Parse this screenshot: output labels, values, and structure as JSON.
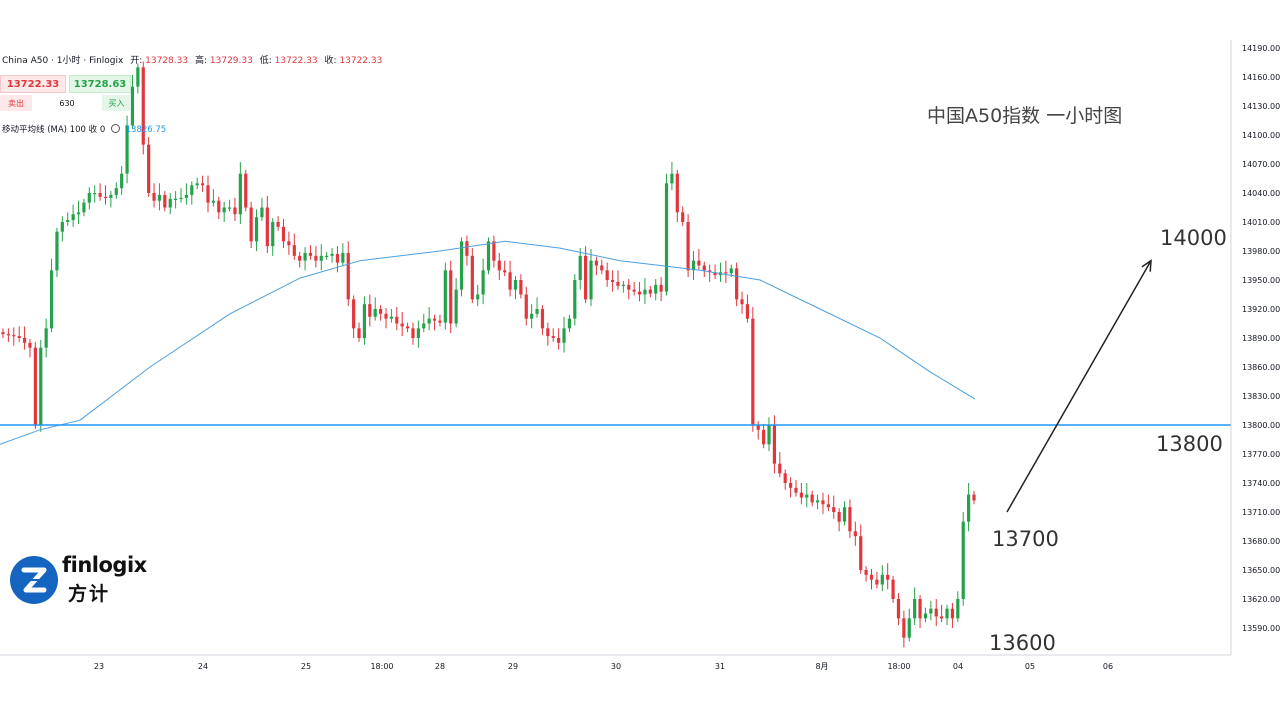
{
  "header": {
    "symbol": "China A50 · 1小时 · Finlogix",
    "open_label": "开:",
    "open_value": "13728.33",
    "high_label": "高:",
    "high_value": "13729.33",
    "low_label": "低:",
    "low_value": "13722.33",
    "close_label": "收:",
    "close_value": "13722.33"
  },
  "trade_panel": {
    "bid": "13722.33",
    "ask": "13728.63",
    "sell_label": "卖出",
    "buy_label": "买入",
    "spread": "630"
  },
  "ma_legend": {
    "label": "移动平均线 (MA) 100 收 0",
    "value": "13826.75"
  },
  "annotation": {
    "title": "中国A50指数 一小时图",
    "level_14000": "14000",
    "level_13800": "13800",
    "level_13700": "13700",
    "level_13600": "13600"
  },
  "logo": {
    "en": "finlogix",
    "cn": "方计"
  },
  "colors": {
    "up": "#26a14b",
    "down": "#e0363c",
    "ma": "#4a9fe0",
    "hline": "#2196f3",
    "arrow": "#222222"
  },
  "chart_data": {
    "type": "candlestick",
    "title": "中国A50指数 一小时图",
    "ylim": [
      13570,
      14200
    ],
    "y_ticks": [
      "14190.00",
      "14160.00",
      "14130.00",
      "14100.00",
      "14070.00",
      "14040.00",
      "14010.00",
      "13980.00",
      "13950.00",
      "13920.00",
      "13890.00",
      "13860.00",
      "13830.00",
      "13800.00",
      "13770.00",
      "13740.00",
      "13710.00",
      "13680.00",
      "13650.00",
      "13620.00",
      "13590.00"
    ],
    "x_ticks": [
      "23",
      "24",
      "25",
      "18:00",
      "28",
      "29",
      "30",
      "31",
      "8月",
      "18:00",
      "04",
      "05",
      "06"
    ],
    "horizontal_line": 13800,
    "ma_series_name": "移动平均线 (MA) 100",
    "ma_last_value": 13826.75,
    "arrow": {
      "from": {
        "x": "04",
        "y": 13710
      },
      "to": {
        "x": "06",
        "y": 13970
      }
    },
    "series": [
      {
        "name": "23",
        "values": [
          13894,
          13893,
          13892,
          13890,
          13885,
          13880,
          13800,
          13880,
          13900,
          13960,
          14000,
          14010,
          14012,
          14018,
          14020,
          14030,
          14040,
          14040,
          14036,
          14035,
          14038,
          14045,
          14060,
          14110,
          14150,
          14170
        ]
      },
      {
        "name": "24",
        "values": [
          14090,
          14040,
          14032,
          14038,
          14025,
          14034,
          14034,
          14035,
          14038,
          14048,
          14050,
          14048,
          14030,
          14032,
          14020,
          14025,
          14025,
          14018,
          14060,
          14025,
          13990,
          14015,
          14025,
          13985,
          14010,
          14005,
          13990,
          13986,
          13975,
          13970,
          13978,
          13975,
          13970
        ]
      },
      {
        "name": "25",
        "values": [
          13975,
          13975,
          13977,
          13968,
          13978,
          13930,
          13900,
          13890,
          13925,
          13912,
          13920,
          13915,
          13910,
          13912,
          13905,
          13902,
          13900,
          13890,
          13900,
          13905,
          13910,
          13908,
          13906,
          13960,
          13905
        ]
      },
      {
        "name": "28",
        "values": [
          13940,
          13990,
          13975,
          13930,
          13935,
          13960,
          13990,
          13970,
          13960,
          13958,
          13940,
          13950,
          13935,
          13910,
          13915,
          13920,
          13900,
          13892,
          13890,
          13885,
          13900,
          13910,
          13950,
          13975,
          13930,
          13970,
          13965,
          13960,
          13950,
          13948,
          13944,
          13945,
          13940,
          13938,
          13935,
          13940,
          13936,
          13945
        ]
      },
      {
        "name": "30",
        "values": [
          13938,
          14050,
          14060,
          14020,
          14010,
          13960,
          13970,
          13965,
          13960,
          13958,
          13955,
          13958,
          13957,
          13962,
          13930,
          13925,
          13910,
          13800,
          13795,
          13780,
          13800,
          13760,
          13750,
          13740,
          13735,
          13730,
          13725,
          13728,
          13720,
          13722,
          13718,
          13715,
          13710,
          13700,
          13715,
          13690,
          13685,
          13650,
          13645,
          13640,
          13635,
          13645,
          13640,
          13620,
          13600,
          13580,
          13600,
          13620,
          13600,
          13605,
          13610,
          13602,
          13600,
          13610,
          13600,
          13620,
          13700,
          13728,
          13722
        ]
      }
    ]
  }
}
